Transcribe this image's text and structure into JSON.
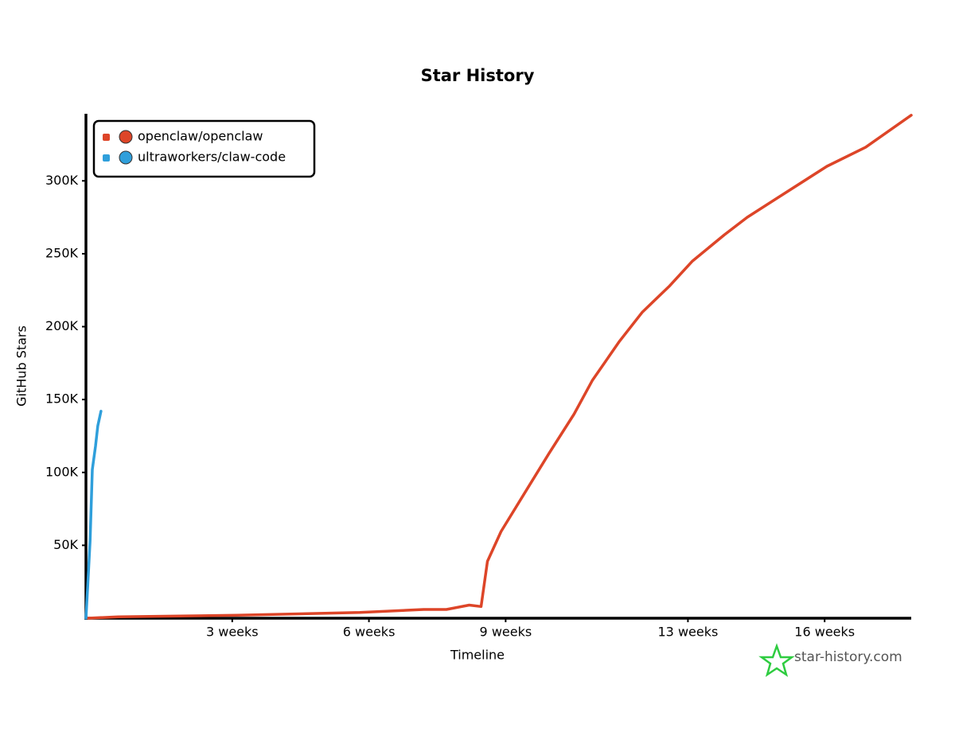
{
  "chart_data": {
    "type": "line",
    "title": "Star History",
    "x_label": "Timeline",
    "y_label": "GitHub Stars",
    "series": [
      {
        "name": "openclaw/openclaw",
        "color": "#dd4528",
        "x": [
          -0.17,
          0.5,
          3.1,
          5.8,
          7.2,
          7.7,
          8.2,
          8.46,
          8.6,
          8.9,
          9.4,
          9.95,
          10.5,
          10.9,
          11.5,
          12.0,
          12.6,
          13.1,
          13.8,
          14.3,
          15.2,
          16.05,
          16.9,
          17.9
        ],
        "values": [
          0,
          1000,
          2000,
          4000,
          6000,
          6000,
          9000,
          8000,
          39000,
          59500,
          85000,
          113000,
          140000,
          163000,
          190000,
          210000,
          228000,
          245000,
          263000,
          275000,
          293000,
          310000,
          323000,
          345000
        ]
      },
      {
        "name": "ultraworkers/claw-code",
        "color": "#2f9fdb",
        "x": [
          -0.21,
          -0.17,
          -0.12,
          -0.07,
          0,
          0.05,
          0.12
        ],
        "values": [
          0,
          23000,
          53000,
          102000,
          118000,
          132000,
          142000
        ]
      }
    ],
    "xlim": [
      -0.21,
      17.9
    ],
    "xticks": [
      {
        "value": 3,
        "label": "3 weeks"
      },
      {
        "value": 6,
        "label": "6 weeks"
      },
      {
        "value": 9,
        "label": "9 weeks"
      },
      {
        "value": 13,
        "label": "13 weeks"
      },
      {
        "value": 16,
        "label": "16 weeks"
      }
    ],
    "ylim": [
      0,
      346000
    ],
    "yticks": [
      {
        "value": 50000,
        "label": "50K"
      },
      {
        "value": 100000,
        "label": "100K"
      },
      {
        "value": 150000,
        "label": "150K"
      },
      {
        "value": 200000,
        "label": "200K"
      },
      {
        "value": 250000,
        "label": "250K"
      },
      {
        "value": 300000,
        "label": "300K"
      }
    ],
    "legend": "upper left",
    "watermark": "star-history.com"
  }
}
